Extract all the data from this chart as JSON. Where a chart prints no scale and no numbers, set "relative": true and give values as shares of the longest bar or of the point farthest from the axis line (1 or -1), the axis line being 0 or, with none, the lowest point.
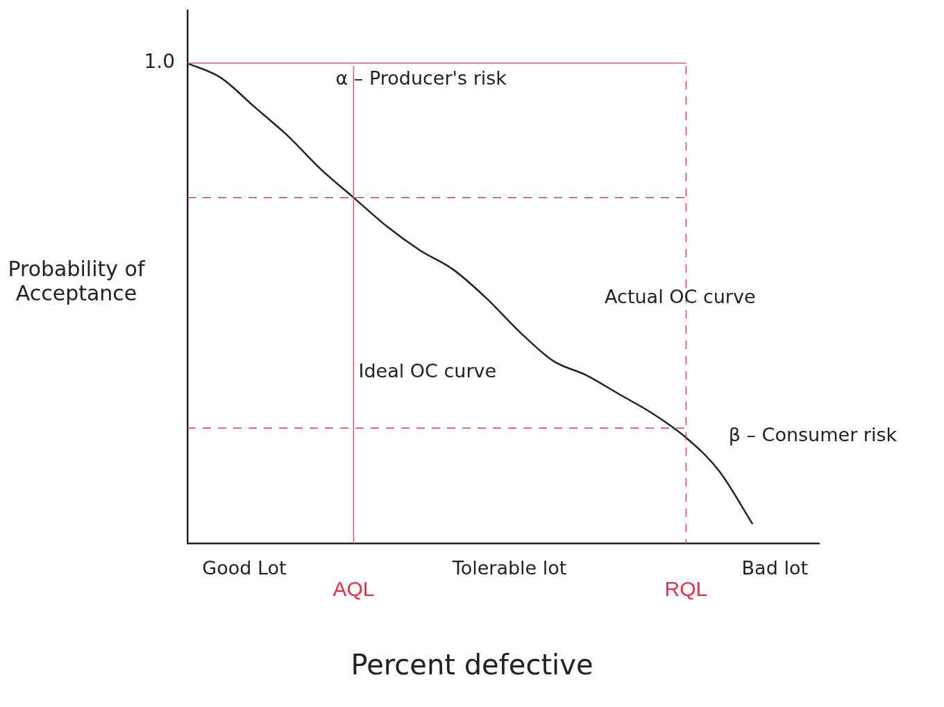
{
  "chart_data": {
    "type": "line",
    "relative": true,
    "xlabel": "Percent defective",
    "ylabel": "Probability of Acceptance",
    "categories": [
      null,
      null,
      null,
      null,
      null,
      "AQL",
      null,
      null,
      null,
      null,
      null,
      null,
      null,
      null,
      null,
      "RQL",
      null,
      null,
      null,
      null
    ],
    "series": [
      {
        "color": "#222222",
        "values": [
          1.0,
          0.97,
          0.91,
          0.85,
          0.78,
          0.72,
          0.66,
          0.61,
          0.57,
          0.51,
          0.44,
          0.38,
          0.35,
          0.31,
          0.27,
          0.22,
          0.15,
          0.04,
          null,
          null
        ]
      }
    ],
    "ref_lines": [
      {
        "axis": "y",
        "value": 1,
        "label": "1.0",
        "color": "#e0507a",
        "line_style": "solid"
      },
      {
        "axis": "x",
        "value": "AQL",
        "color": "#e0507a",
        "line_style": "solid"
      },
      {
        "axis": "y",
        "value": 0.72,
        "color": "#d04060",
        "line_style": "dashed"
      },
      {
        "axis": "y",
        "value": 0.24,
        "color": "#d04060",
        "line_style": "dashed"
      },
      {
        "axis": "x",
        "value": "RQL",
        "color": "#d04060",
        "line_style": "dashed"
      }
    ],
    "annotations": [
      "α – Producer's risk",
      "Ideal OC curve",
      "Actual OC curve",
      "β – Consumer risk",
      "Good Lot",
      "Tolerable lot",
      "Bad lot"
    ],
    "legend": false,
    "grid": false,
    "marker": "none",
    "line_style": "solid"
  }
}
